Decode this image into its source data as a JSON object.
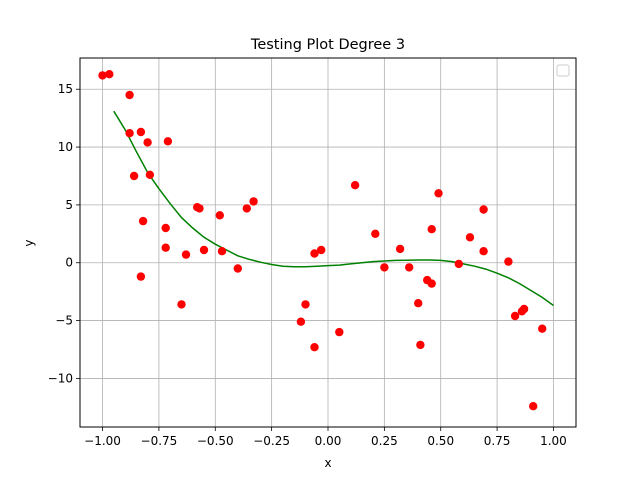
{
  "chart_data": {
    "type": "scatter",
    "title": "Testing Plot Degree 3",
    "xlabel": "x",
    "ylabel": "y",
    "xlim": [
      -1.1,
      1.1
    ],
    "ylim": [
      -14.2,
      17.7
    ],
    "xticks": [
      -1.0,
      -0.75,
      -0.5,
      -0.25,
      0.0,
      0.25,
      0.5,
      0.75,
      1.0
    ],
    "xtick_labels": [
      "−1.00",
      "−0.75",
      "−0.50",
      "−0.25",
      "0.00",
      "0.25",
      "0.50",
      "0.75",
      "1.00"
    ],
    "yticks": [
      -10,
      -5,
      0,
      5,
      10,
      15
    ],
    "ytick_labels": [
      "−10",
      "−5",
      "0",
      "5",
      "10",
      "15"
    ],
    "grid": true,
    "legend_placement": "top-right",
    "legend_entries": [],
    "colors": {
      "points": "#ff0000",
      "fit_line": "#008000",
      "grid": "#b0b0b0"
    },
    "series": [
      {
        "type": "scatter",
        "points": [
          [
            -1.0,
            16.2
          ],
          [
            -0.97,
            16.3
          ],
          [
            -0.88,
            14.5
          ],
          [
            -0.88,
            11.2
          ],
          [
            -0.86,
            7.5
          ],
          [
            -0.83,
            11.3
          ],
          [
            -0.8,
            10.4
          ],
          [
            -0.79,
            7.6
          ],
          [
            -0.82,
            3.6
          ],
          [
            -0.83,
            -1.2
          ],
          [
            -0.72,
            3.0
          ],
          [
            -0.72,
            1.3
          ],
          [
            -0.71,
            10.5
          ],
          [
            -0.65,
            -3.6
          ],
          [
            -0.63,
            0.7
          ],
          [
            -0.58,
            4.8
          ],
          [
            -0.57,
            4.7
          ],
          [
            -0.55,
            1.1
          ],
          [
            -0.48,
            4.1
          ],
          [
            -0.47,
            1.0
          ],
          [
            -0.4,
            -0.5
          ],
          [
            -0.36,
            4.7
          ],
          [
            -0.33,
            5.3
          ],
          [
            -0.12,
            -5.1
          ],
          [
            -0.1,
            -3.6
          ],
          [
            -0.06,
            -7.3
          ],
          [
            -0.06,
            0.8
          ],
          [
            -0.03,
            1.1
          ],
          [
            0.05,
            -6.0
          ],
          [
            0.12,
            6.7
          ],
          [
            0.21,
            2.5
          ],
          [
            0.25,
            -0.4
          ],
          [
            0.32,
            1.2
          ],
          [
            0.36,
            -0.4
          ],
          [
            0.4,
            -3.5
          ],
          [
            0.41,
            -7.1
          ],
          [
            0.44,
            -1.5
          ],
          [
            0.46,
            -1.8
          ],
          [
            0.46,
            2.9
          ],
          [
            0.49,
            6.0
          ],
          [
            0.58,
            -0.1
          ],
          [
            0.63,
            2.2
          ],
          [
            0.69,
            4.6
          ],
          [
            0.69,
            1.0
          ],
          [
            0.8,
            0.1
          ],
          [
            0.83,
            -4.6
          ],
          [
            0.86,
            -4.2
          ],
          [
            0.87,
            -4.0
          ],
          [
            0.91,
            -12.4
          ],
          [
            0.95,
            -5.7
          ]
        ]
      },
      {
        "type": "line",
        "x": [
          -0.95,
          -0.9,
          -0.85,
          -0.8,
          -0.75,
          -0.7,
          -0.65,
          -0.6,
          -0.55,
          -0.5,
          -0.45,
          -0.4,
          -0.35,
          -0.3,
          -0.25,
          -0.2,
          -0.15,
          -0.1,
          -0.05,
          0.0,
          0.05,
          0.1,
          0.15,
          0.2,
          0.25,
          0.3,
          0.35,
          0.4,
          0.45,
          0.5,
          0.55,
          0.6,
          0.65,
          0.7,
          0.75,
          0.8,
          0.85,
          0.9,
          0.95,
          1.0
        ],
        "y": [
          13.1,
          11.5,
          9.6,
          7.8,
          6.4,
          5.1,
          3.9,
          3.0,
          2.2,
          1.6,
          1.1,
          0.6,
          0.3,
          0.05,
          -0.15,
          -0.3,
          -0.35,
          -0.35,
          -0.3,
          -0.25,
          -0.2,
          -0.1,
          0.0,
          0.1,
          0.15,
          0.2,
          0.22,
          0.24,
          0.24,
          0.2,
          0.1,
          -0.1,
          -0.3,
          -0.55,
          -0.9,
          -1.3,
          -1.8,
          -2.4,
          -3.0,
          -3.7
        ]
      }
    ]
  }
}
